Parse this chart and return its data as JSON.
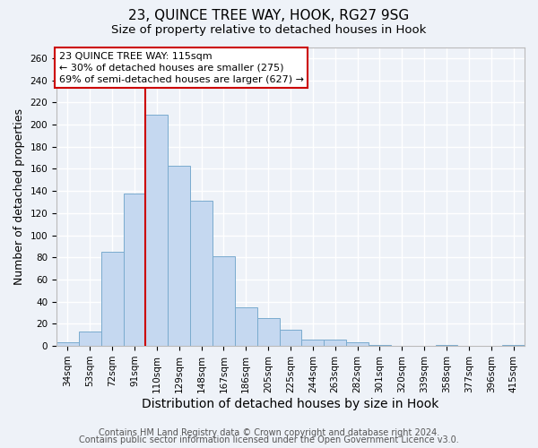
{
  "title1": "23, QUINCE TREE WAY, HOOK, RG27 9SG",
  "title2": "Size of property relative to detached houses in Hook",
  "xlabel": "Distribution of detached houses by size in Hook",
  "ylabel": "Number of detached properties",
  "footer1": "Contains HM Land Registry data © Crown copyright and database right 2024.",
  "footer2": "Contains public sector information licensed under the Open Government Licence v3.0.",
  "categories": [
    "34sqm",
    "53sqm",
    "72sqm",
    "91sqm",
    "110sqm",
    "129sqm",
    "148sqm",
    "167sqm",
    "186sqm",
    "205sqm",
    "225sqm",
    "244sqm",
    "263sqm",
    "282sqm",
    "301sqm",
    "320sqm",
    "339sqm",
    "358sqm",
    "377sqm",
    "396sqm",
    "415sqm"
  ],
  "values": [
    3,
    13,
    85,
    138,
    209,
    163,
    131,
    81,
    35,
    25,
    15,
    6,
    6,
    3,
    1,
    0,
    0,
    1,
    0,
    0,
    1
  ],
  "bar_color": "#c5d8f0",
  "bar_edge_color": "#7aabce",
  "vline_color": "#cc0000",
  "annotation_title": "23 QUINCE TREE WAY: 115sqm",
  "annotation_line1": "← 30% of detached houses are smaller (275)",
  "annotation_line2": "69% of semi-detached houses are larger (627) →",
  "annotation_box_edge": "#cc0000",
  "annotation_box_face": "#ffffff",
  "ylim": [
    0,
    270
  ],
  "yticks": [
    0,
    20,
    40,
    60,
    80,
    100,
    120,
    140,
    160,
    180,
    200,
    220,
    240,
    260
  ],
  "bg_color": "#eef2f8",
  "plot_bg_color": "#eef2f8",
  "grid_color": "#ffffff",
  "title1_fontsize": 11,
  "title2_fontsize": 9.5,
  "xlabel_fontsize": 10,
  "ylabel_fontsize": 9,
  "tick_fontsize": 7.5,
  "footer_fontsize": 7,
  "ann_fontsize": 8
}
